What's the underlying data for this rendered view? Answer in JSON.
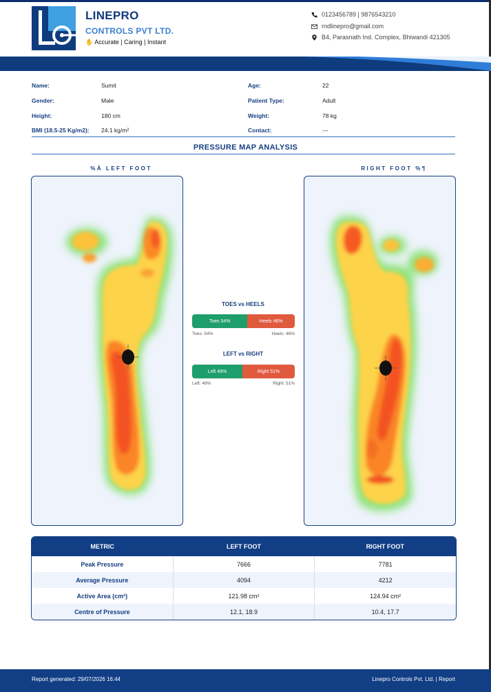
{
  "company": {
    "name_line1": "LINEPRO",
    "name_line2": "CONTROLS PVT LTD.",
    "tagline": "Accurate | Caring | Instant",
    "phone": "0123456789 | 9876543210",
    "email": "rndlinepro@gmail.com",
    "address": "B4, Parasnath Ind. Complex, Bhiwandi 421305",
    "colors": {
      "primary": "#113e85",
      "accent": "#3a7fcf"
    }
  },
  "patient": {
    "name_label": "Name:",
    "name": "Sumit",
    "age_label": "Age:",
    "age": "22",
    "gender_label": "Gender:",
    "gender": "Male",
    "type_label": "Patient Type:",
    "type": "Adult",
    "height_label": "Height:",
    "height": "180 cm",
    "weight_label": "Weight:",
    "weight": "78 kg",
    "bmi_label": "BMI (18.5-25 Kg/m2):",
    "bmi": "24.1 kg/m²",
    "contact_label": "Contact:",
    "contact": "---"
  },
  "section_title": "PRESSURE MAP ANALYSIS",
  "left_foot_title": "%À   LEFT FOOT",
  "right_foot_title": "RIGHT FOOT   %¶",
  "toes_heels": {
    "title": "TOES vs HEELS",
    "toes_label": "Toes 54%",
    "heels_label": "Heels 46%",
    "toes_pct": 54,
    "heels_pct": 46,
    "cap_left": "Toes: 54%",
    "cap_right": "Heels: 46%"
  },
  "left_right": {
    "title": "LEFT vs RIGHT",
    "left_label": "Left 49%",
    "right_label": "Right 51%",
    "left_pct": 49,
    "right_pct": 51,
    "cap_left": "Left: 49%",
    "cap_right": "Right: 51%"
  },
  "metrics_table": {
    "headers": [
      "METRIC",
      "LEFT FOOT",
      "RIGHT FOOT"
    ],
    "rows": [
      [
        "Peak Pressure",
        "7666",
        "7781"
      ],
      [
        "Average Pressure",
        "4094",
        "4212"
      ],
      [
        "Active Area (cm²)",
        "121.98 cm²",
        "124.94 cm²"
      ],
      [
        "Centre of Pressure",
        "12.1, 18.9",
        "10.4, 17.7"
      ]
    ]
  },
  "footer": {
    "left": "Report generated: 29/07/2026  16:44",
    "right": "Linepro Controls Pvt. Ltd. | Report"
  }
}
